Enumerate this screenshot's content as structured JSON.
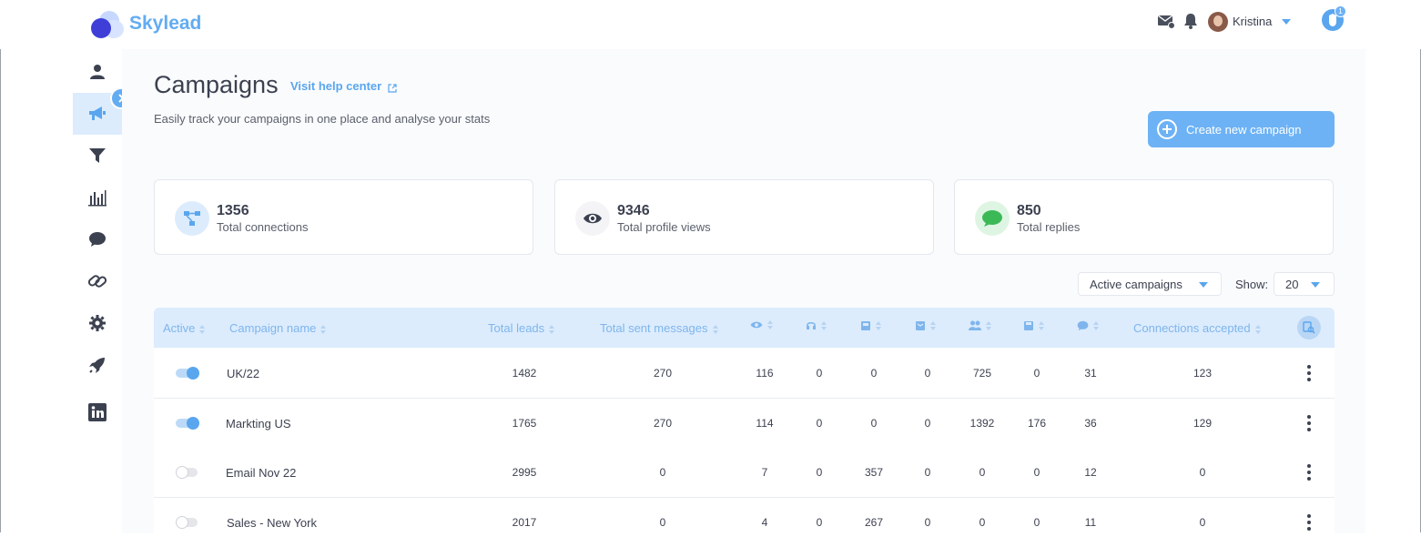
{
  "app": {
    "brand": "Skylead"
  },
  "header": {
    "user_name": "Kristina",
    "help_badge": "1"
  },
  "sidebar": {
    "items": [
      {
        "name": "profile",
        "icon": "user-icon",
        "active": false
      },
      {
        "name": "campaigns",
        "icon": "megaphone-icon",
        "active": true
      },
      {
        "name": "filters",
        "icon": "funnel-icon",
        "active": false
      },
      {
        "name": "statistics",
        "icon": "bar-chart-icon",
        "active": false
      },
      {
        "name": "inbox",
        "icon": "chat-icon",
        "active": false
      },
      {
        "name": "integrations",
        "icon": "link-icon",
        "active": false
      },
      {
        "name": "settings",
        "icon": "gear-icon",
        "active": false
      },
      {
        "name": "launch",
        "icon": "rocket-icon",
        "active": false
      },
      {
        "name": "linkedin",
        "icon": "linkedin-icon",
        "active": false
      }
    ]
  },
  "page": {
    "title": "Campaigns",
    "help_link": "Visit help center",
    "subtitle": "Easily track your campaigns in one place and analyse your stats",
    "create_button": "Create new campaign"
  },
  "stats": [
    {
      "value": "1356",
      "label": "Total connections",
      "icon": "network-icon"
    },
    {
      "value": "9346",
      "label": "Total profile views",
      "icon": "eye-icon"
    },
    {
      "value": "850",
      "label": "Total replies",
      "icon": "chat-bubble-icon"
    }
  ],
  "filters": {
    "campaign_filter": "Active campaigns",
    "show_label": "Show:",
    "show_value": "20"
  },
  "table": {
    "headers": {
      "active": "Active",
      "name": "Campaign name",
      "total_leads": "Total leads",
      "total_sent": "Total sent messages",
      "connections_accepted": "Connections accepted"
    },
    "icon_columns": [
      "eye-icon",
      "headset-icon",
      "inbox-icon",
      "inbox-open-icon",
      "people-icon",
      "save-icon",
      "chat-icon"
    ],
    "rows": [
      {
        "active": true,
        "name": "UK/22",
        "leads": "1482",
        "sent": "270",
        "c1": "116",
        "c2": "0",
        "c3": "0",
        "c4": "0",
        "c5": "725",
        "c6": "0",
        "c7": "31",
        "accepted": "123"
      },
      {
        "active": true,
        "name": "Markting US",
        "leads": "1765",
        "sent": "270",
        "c1": "114",
        "c2": "0",
        "c3": "0",
        "c4": "0",
        "c5": "1392",
        "c6": "176",
        "c7": "36",
        "accepted": "129"
      },
      {
        "active": false,
        "name": "Email Nov 22",
        "leads": "2995",
        "sent": "0",
        "c1": "7",
        "c2": "0",
        "c3": "357",
        "c4": "0",
        "c5": "0",
        "c6": "0",
        "c7": "12",
        "accepted": "0"
      },
      {
        "active": false,
        "name": "Sales - New York",
        "leads": "2017",
        "sent": "0",
        "c1": "4",
        "c2": "0",
        "c3": "267",
        "c4": "0",
        "c5": "0",
        "c6": "0",
        "c7": "11",
        "accepted": "0"
      }
    ]
  },
  "colors": {
    "accent": "#5aa6ee",
    "header_bg": "#dcecfd",
    "brand": "#62acf2"
  }
}
